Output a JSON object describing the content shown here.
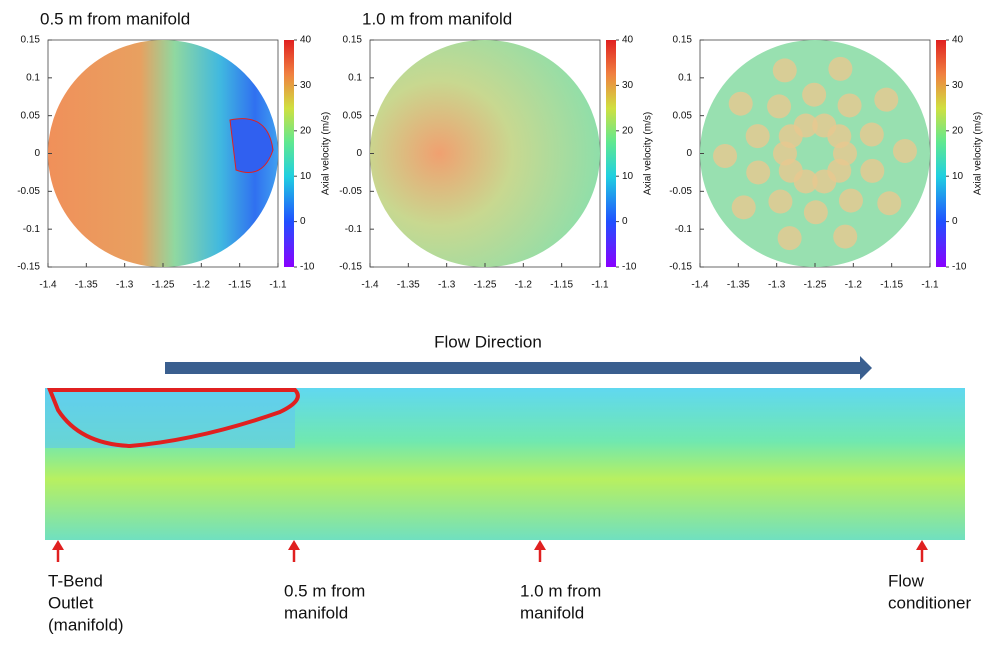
{
  "panels": [
    {
      "title": "0.5 m from manifold",
      "xticks": [
        -1.4,
        -1.35,
        -1.3,
        -1.25,
        -1.2,
        -1.15,
        -1.1
      ],
      "yticks": [
        0.15,
        0.1,
        0.05,
        0,
        -0.05,
        -0.1,
        -0.15
      ],
      "colorbar_ticks": [
        40,
        30,
        20,
        10,
        0,
        -10
      ],
      "colorbar_label": "Axial velocity (m/s)"
    },
    {
      "title": "1.0 m from manifold",
      "xticks": [
        -1.4,
        -1.35,
        -1.3,
        -1.25,
        -1.2,
        -1.15,
        -1.1
      ],
      "yticks": [
        0.15,
        0.1,
        0.05,
        0,
        -0.05,
        -0.1,
        -0.15
      ],
      "colorbar_ticks": [
        40,
        30,
        20,
        10,
        0,
        -10
      ],
      "colorbar_label": "Axial velocity (m/s)"
    },
    {
      "title": "",
      "xticks": [
        -1.4,
        -1.35,
        -1.3,
        -1.25,
        -1.2,
        -1.15,
        -1.1
      ],
      "yticks": [
        0.15,
        0.1,
        0.05,
        0,
        -0.05,
        -0.1,
        -0.15
      ],
      "colorbar_ticks": [
        40,
        30,
        20,
        10,
        0,
        -10
      ],
      "colorbar_label": "Axial velocity (m/s)"
    }
  ],
  "flow": {
    "direction_label": "Flow Direction",
    "markers": [
      {
        "lines": [
          "T-Bend",
          "Outlet",
          "(manifold)"
        ]
      },
      {
        "lines": [
          "0.5 m from",
          "manifold"
        ]
      },
      {
        "lines": [
          "1.0 m from",
          "manifold"
        ]
      },
      {
        "lines": [
          "Flow",
          "conditioner"
        ]
      }
    ]
  }
}
